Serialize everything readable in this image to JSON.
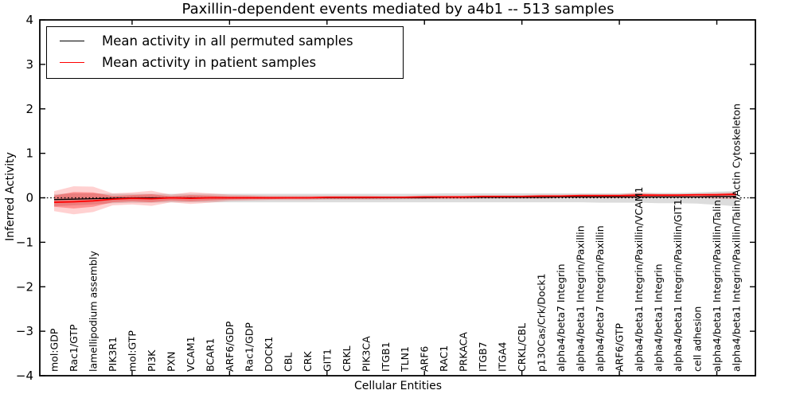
{
  "title": "Paxillin-dependent events mediated by a4b1 -- 513 samples",
  "legend": {
    "items": [
      {
        "label": "Mean activity in all permuted samples",
        "color": "#000000"
      },
      {
        "label": "Mean activity in patient samples",
        "color": "#ff0000"
      }
    ]
  },
  "chart_data": {
    "type": "line",
    "title": "Paxillin-dependent events mediated by a4b1 -- 513 samples",
    "xlabel": "Cellular Entities",
    "ylabel": "Inferred Activity",
    "ylim": [
      -4,
      4
    ],
    "yticks": [
      -4,
      -3,
      -2,
      -1,
      0,
      1,
      2,
      3,
      4
    ],
    "grid": false,
    "zero_line": true,
    "legend_position": "upper left",
    "categories": [
      "mol:GDP",
      "Rac1/GTP",
      "lamellipodium assembly",
      "PIK3R1",
      "mol:GTP",
      "PI3K",
      "PXN",
      "VCAM1",
      "BCAR1",
      "ARF6/GDP",
      "Rac1/GDP",
      "DOCK1",
      "CBL",
      "CRK",
      "GIT1",
      "CRKL",
      "PIK3CA",
      "ITGB1",
      "TLN1",
      "ARF6",
      "RAC1",
      "PRKACA",
      "ITGB7",
      "ITGA4",
      "CRKL/CBL",
      "p130Cas/Crk/Dock1",
      "alpha4/beta7 Integrin",
      "alpha4/beta1 Integrin/Paxillin",
      "alpha4/beta7 Integrin/Paxillin",
      "ARF6/GTP",
      "alpha4/beta1 Integrin/Paxillin/VCAM1",
      "alpha4/beta1 Integrin",
      "alpha4/beta1 Integrin/Paxillin/GIT1",
      "cell adhesion",
      "alpha4/beta1 Integrin/Paxillin/Talin",
      "alpha4/beta1 Integrin/Paxillin/Talin/Actin Cytoskeleton"
    ],
    "series": [
      {
        "name": "Mean activity in all permuted samples",
        "color": "#000000",
        "values": [
          -0.04,
          -0.03,
          -0.02,
          -0.01,
          0,
          0,
          0,
          0,
          0,
          0,
          0,
          0,
          0,
          0,
          0,
          0,
          0,
          0,
          0,
          0,
          0.01,
          0.01,
          0.01,
          0.01,
          0.01,
          0.01,
          0.02,
          0.02,
          0.02,
          0.02,
          0.02,
          0.02,
          0.02,
          0.02,
          0.03,
          0.03
        ]
      },
      {
        "name": "Mean activity in patient samples",
        "color": "#ff0000",
        "values": [
          -0.1,
          -0.09,
          -0.07,
          -0.03,
          -0.01,
          -0.02,
          0.0,
          -0.01,
          0.0,
          0.0,
          0.0,
          0.0,
          0.0,
          0.0,
          0.01,
          0.01,
          0.01,
          0.01,
          0.01,
          0.02,
          0.02,
          0.02,
          0.03,
          0.03,
          0.03,
          0.04,
          0.04,
          0.05,
          0.05,
          0.05,
          0.06,
          0.06,
          0.06,
          0.07,
          0.07,
          0.08
        ]
      }
    ],
    "bands": [
      {
        "name": "permuted-samples-range",
        "color": "#808080",
        "alpha": 0.28,
        "hi": [
          0.08,
          0.1,
          0.1,
          0.09,
          0.09,
          0.09,
          0.09,
          0.09,
          0.09,
          0.09,
          0.09,
          0.09,
          0.09,
          0.09,
          0.09,
          0.09,
          0.09,
          0.09,
          0.09,
          0.09,
          0.1,
          0.1,
          0.1,
          0.1,
          0.1,
          0.1,
          0.1,
          0.1,
          0.1,
          0.1,
          0.11,
          0.11,
          0.11,
          0.12,
          0.14,
          0.15
        ],
        "lo": [
          -0.19,
          -0.17,
          -0.15,
          -0.12,
          -0.11,
          -0.11,
          -0.1,
          -0.1,
          -0.1,
          -0.1,
          -0.1,
          -0.1,
          -0.1,
          -0.1,
          -0.1,
          -0.1,
          -0.1,
          -0.1,
          -0.1,
          -0.1,
          -0.1,
          -0.1,
          -0.1,
          -0.1,
          -0.1,
          -0.1,
          -0.1,
          -0.1,
          -0.11,
          -0.11,
          -0.11,
          -0.12,
          -0.12,
          -0.13,
          -0.16,
          -0.19
        ]
      },
      {
        "name": "patient-samples-range-outer",
        "color": "#ff0000",
        "alpha": 0.18,
        "hi": [
          0.15,
          0.26,
          0.25,
          0.1,
          0.12,
          0.16,
          0.07,
          0.13,
          0.1,
          0.07,
          0.06,
          0.05,
          0.05,
          0.05,
          0.05,
          0.05,
          0.05,
          0.04,
          0.04,
          0.05,
          0.05,
          0.05,
          0.06,
          0.06,
          0.06,
          0.07,
          0.07,
          0.08,
          0.08,
          0.08,
          0.12,
          0.09,
          0.09,
          0.09,
          0.11,
          0.13
        ],
        "lo": [
          -0.3,
          -0.37,
          -0.32,
          -0.17,
          -0.15,
          -0.18,
          -0.1,
          -0.14,
          -0.11,
          -0.07,
          -0.06,
          -0.05,
          -0.05,
          -0.05,
          -0.04,
          -0.04,
          -0.04,
          -0.04,
          -0.03,
          -0.03,
          -0.03,
          -0.03,
          -0.02,
          -0.02,
          -0.02,
          -0.02,
          -0.01,
          -0.01,
          -0.01,
          -0.01,
          -0.01,
          0.0,
          0.0,
          0.0,
          -0.02,
          -0.03
        ]
      },
      {
        "name": "patient-samples-range-inner",
        "color": "#ff0000",
        "alpha": 0.3,
        "hi": [
          0.05,
          0.13,
          0.12,
          0.04,
          0.06,
          0.08,
          0.03,
          0.06,
          0.05,
          0.03,
          0.03,
          0.02,
          0.02,
          0.02,
          0.02,
          0.02,
          0.02,
          0.02,
          0.02,
          0.03,
          0.03,
          0.03,
          0.04,
          0.04,
          0.04,
          0.05,
          0.05,
          0.06,
          0.06,
          0.06,
          0.08,
          0.07,
          0.07,
          0.07,
          0.08,
          0.1
        ],
        "lo": [
          -0.2,
          -0.24,
          -0.2,
          -0.1,
          -0.08,
          -0.1,
          -0.06,
          -0.08,
          -0.06,
          -0.04,
          -0.03,
          -0.03,
          -0.02,
          -0.02,
          -0.02,
          -0.02,
          -0.02,
          -0.01,
          -0.01,
          -0.01,
          -0.01,
          -0.01,
          0.0,
          0.0,
          0.0,
          0.0,
          0.01,
          0.01,
          0.01,
          0.01,
          0.02,
          0.02,
          0.02,
          0.03,
          0.03,
          0.04
        ]
      }
    ],
    "top_ticks_every": 5
  }
}
